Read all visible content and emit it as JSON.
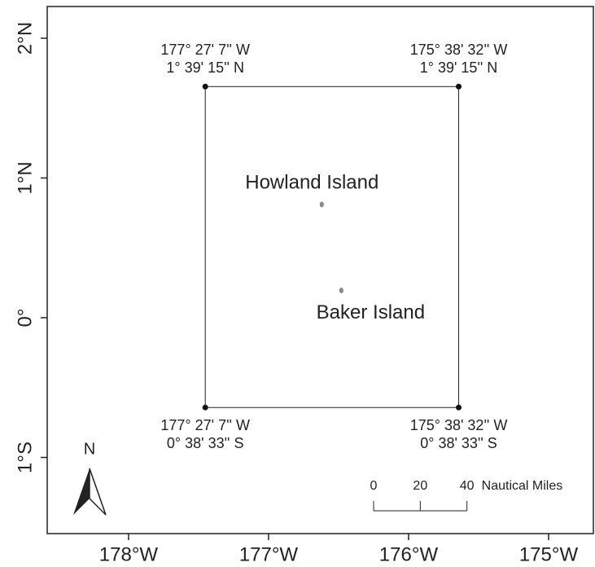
{
  "map": {
    "xlim": [
      -178.581,
      -174.68
    ],
    "ylim": [
      -1.545,
      2.227
    ],
    "xticks": [
      {
        "value": -178,
        "label": "178°W"
      },
      {
        "value": -177,
        "label": "177°W"
      },
      {
        "value": -176,
        "label": "176°W"
      },
      {
        "value": -175,
        "label": "175°W"
      }
    ],
    "yticks": [
      {
        "value": -1,
        "label": "1°S"
      },
      {
        "value": 0,
        "label": "0°"
      },
      {
        "value": 1,
        "label": "1°N"
      },
      {
        "value": 2,
        "label": "2°N"
      }
    ],
    "corners": [
      {
        "label": [
          "177° 27' 7'' W",
          "1° 39' 15'' N"
        ],
        "lon": -177.452,
        "lat": 1.654
      },
      {
        "label": [
          "175° 38' 32'' W",
          "1° 39' 15'' N"
        ],
        "lon": -175.642,
        "lat": 1.654
      },
      {
        "label": [
          "175° 38' 32'' W",
          "0° 38' 33'' S"
        ],
        "lon": -175.642,
        "lat": -0.6425
      },
      {
        "label": [
          "177° 27' 7'' W",
          "0° 38' 33'' S"
        ],
        "lon": -177.452,
        "lat": -0.6425
      }
    ],
    "islands": [
      {
        "name": "Howland Island",
        "lon": -176.62,
        "lat": 0.81
      },
      {
        "name": "Baker Island",
        "lon": -176.48,
        "lat": 0.195
      }
    ],
    "north_label": "N",
    "scale_bar": {
      "ticks": [
        0,
        20,
        40
      ],
      "unit": "Nautical Miles"
    }
  }
}
